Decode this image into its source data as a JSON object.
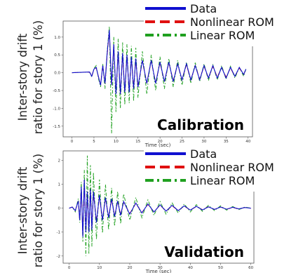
{
  "ylabel_line1": "Inter-story drift",
  "ylabel_line2": "ratio for story 1 (%)",
  "chart_data": [
    {
      "type": "line",
      "annotation": "Calibration",
      "xlabel": "Time (sec)",
      "xlim": [
        -2,
        41
      ],
      "ylim": [
        -1.8,
        1.45
      ],
      "xticks": [
        0,
        5,
        10,
        15,
        20,
        25,
        30,
        35,
        40
      ],
      "yticks": [
        -1.5,
        -1.0,
        -0.5,
        0.0,
        0.5,
        1.0
      ],
      "ytick_labels": [
        "-1.5",
        "-1.0",
        "-0.5",
        "0.0",
        "0.5",
        "1.0"
      ],
      "legend_placement": "top-right",
      "grid": false,
      "series": [
        {
          "name": "Data",
          "color": "#1010d0",
          "style": "solid",
          "x": [
            0,
            4,
            4.5,
            5,
            5.5,
            6,
            6.5,
            7,
            7.5,
            8,
            8.5,
            9,
            9.5,
            10,
            10.5,
            11,
            11.5,
            12,
            12.5,
            13,
            13.5,
            14,
            14.5,
            15,
            16,
            17,
            18,
            19,
            20,
            21,
            22,
            23,
            24,
            25,
            26,
            27,
            28,
            29,
            30,
            31,
            32,
            33,
            34,
            35,
            36,
            37,
            38,
            39,
            39.5
          ],
          "y": [
            0,
            0.02,
            -0.1,
            0.1,
            0.15,
            -0.1,
            -0.35,
            0.2,
            -0.3,
            0.55,
            1.2,
            -0.35,
            0.8,
            -0.6,
            0.6,
            -0.6,
            0.55,
            -0.55,
            0.5,
            -0.55,
            0.45,
            -0.45,
            0.4,
            -0.4,
            0.35,
            -0.3,
            0.35,
            -0.3,
            0.3,
            -0.25,
            0.3,
            -0.25,
            0.25,
            -0.2,
            0.25,
            -0.2,
            0.2,
            -0.2,
            0.2,
            -0.15,
            0.2,
            -0.15,
            0.15,
            -0.15,
            0.15,
            -0.1,
            0.15,
            -0.05,
            0.1
          ]
        },
        {
          "name": "Nonlinear ROM",
          "color": "#e01010",
          "style": "dashed",
          "x": [
            0,
            4,
            4.5,
            5,
            5.5,
            6,
            6.5,
            7,
            7.5,
            8,
            8.5,
            9,
            9.5,
            10,
            10.5,
            11,
            11.5,
            12,
            12.5,
            13,
            13.5,
            14,
            14.5,
            15,
            16,
            17,
            18,
            19,
            20,
            21,
            22,
            23,
            24,
            25,
            26,
            27,
            28,
            29,
            30,
            31,
            32,
            33,
            34,
            35,
            36,
            37,
            38,
            39,
            39.5
          ],
          "y": [
            0,
            0.02,
            -0.1,
            0.1,
            0.14,
            -0.1,
            -0.33,
            0.2,
            -0.3,
            0.5,
            1.15,
            -0.35,
            0.75,
            -0.58,
            0.58,
            -0.6,
            0.5,
            -0.55,
            0.48,
            -0.5,
            0.42,
            -0.45,
            0.38,
            -0.4,
            0.33,
            -0.3,
            0.33,
            -0.28,
            0.28,
            -0.25,
            0.28,
            -0.22,
            0.24,
            -0.2,
            0.22,
            -0.2,
            0.2,
            -0.18,
            0.18,
            -0.15,
            0.18,
            -0.12,
            0.14,
            -0.12,
            0.13,
            -0.1,
            0.13,
            -0.05,
            0.1
          ]
        },
        {
          "name": "Linear ROM",
          "color": "#20a020",
          "style": "dashdot",
          "x": [
            0,
            4,
            4.5,
            5,
            5.5,
            6,
            6.5,
            7,
            7.5,
            8,
            8.5,
            9,
            9.5,
            10,
            10.5,
            11,
            11.5,
            12,
            12.5,
            13,
            13.5,
            14,
            14.5,
            15,
            16,
            17,
            18,
            19,
            20,
            21,
            22,
            23,
            24,
            25,
            26,
            27,
            28,
            29,
            30,
            31,
            32,
            33,
            34,
            35,
            36,
            37,
            38,
            39,
            39.5
          ],
          "y": [
            0,
            0.02,
            -0.12,
            0.12,
            0.2,
            -0.15,
            -0.4,
            0.25,
            -0.45,
            0.6,
            1.3,
            -1.7,
            1.0,
            -1.1,
            0.95,
            -1.0,
            0.85,
            -0.9,
            0.8,
            -0.85,
            0.75,
            -0.8,
            0.7,
            -0.7,
            0.6,
            -0.6,
            0.5,
            -0.5,
            0.45,
            -0.45,
            0.4,
            -0.4,
            0.35,
            -0.35,
            0.3,
            -0.3,
            0.28,
            -0.25,
            0.25,
            -0.22,
            0.22,
            -0.2,
            0.2,
            -0.18,
            0.18,
            -0.15,
            0.15,
            -0.1,
            0.1
          ]
        }
      ]
    },
    {
      "type": "line",
      "annotation": "Validation",
      "xlabel": "Time (sec)",
      "xlim": [
        -2,
        61
      ],
      "ylim": [
        -2.3,
        2.4
      ],
      "xticks": [
        0,
        10,
        20,
        30,
        40,
        50,
        60
      ],
      "yticks": [
        -2,
        -1,
        0,
        1,
        2
      ],
      "ytick_labels": [
        "-2",
        "-1",
        "0",
        "1",
        "2"
      ],
      "legend_placement": "top-right",
      "grid": false,
      "series": [
        {
          "name": "Data",
          "color": "#1010d0",
          "style": "solid",
          "x": [
            0,
            1,
            2,
            3,
            3.5,
            4,
            4.5,
            5,
            5.5,
            6,
            6.5,
            7,
            7.5,
            8,
            9,
            10,
            11,
            12,
            13,
            14,
            15,
            16,
            17,
            18,
            20,
            22,
            24,
            26,
            28,
            30,
            32,
            34,
            36,
            38,
            40,
            42,
            44,
            46,
            48,
            50,
            52,
            54,
            56,
            58,
            60
          ],
          "y": [
            0,
            0.05,
            -0.1,
            0.3,
            -0.5,
            0.9,
            -1.2,
            1.2,
            -1.0,
            0.7,
            -1.0,
            0.8,
            -0.9,
            0.7,
            -0.6,
            0.55,
            -0.5,
            0.45,
            -0.4,
            0.4,
            -0.35,
            0.3,
            -0.3,
            0.28,
            -0.25,
            0.22,
            -0.2,
            0.18,
            -0.16,
            0.14,
            -0.12,
            0.12,
            -0.1,
            0.1,
            -0.08,
            0.08,
            -0.07,
            0.06,
            -0.05,
            0.05,
            -0.04,
            0.04,
            -0.03,
            0.03,
            0
          ]
        },
        {
          "name": "Nonlinear ROM",
          "color": "#e01010",
          "style": "dashed",
          "x": [
            0,
            1,
            2,
            3,
            3.5,
            4,
            4.5,
            5,
            5.5,
            6,
            6.5,
            7,
            7.5,
            8,
            9,
            10,
            11,
            12,
            13,
            14,
            15,
            16,
            17,
            18,
            20,
            22,
            24,
            26,
            28,
            30,
            32,
            34,
            36,
            38,
            40,
            42,
            44,
            46,
            48,
            50,
            52,
            54,
            56,
            58,
            60
          ],
          "y": [
            0,
            0.05,
            -0.1,
            0.3,
            -0.5,
            0.85,
            -1.15,
            1.15,
            -1.0,
            0.7,
            -0.95,
            0.75,
            -0.85,
            0.65,
            -0.55,
            0.5,
            -0.48,
            0.42,
            -0.38,
            0.36,
            -0.32,
            0.3,
            -0.28,
            0.25,
            -0.22,
            0.2,
            -0.18,
            0.16,
            -0.15,
            0.13,
            -0.12,
            0.1,
            -0.1,
            0.09,
            -0.08,
            0.07,
            -0.06,
            0.06,
            -0.05,
            0.05,
            -0.04,
            0.03,
            -0.03,
            0.03,
            0
          ]
        },
        {
          "name": "Linear ROM",
          "color": "#20a020",
          "style": "dashdot",
          "x": [
            0,
            1,
            2,
            3,
            3.5,
            4,
            4.5,
            5,
            5.5,
            6,
            6.5,
            7,
            7.5,
            8,
            9,
            10,
            11,
            12,
            13,
            14,
            15,
            16,
            17,
            18,
            20,
            22,
            24,
            26,
            28,
            30,
            32,
            34,
            36,
            38,
            40,
            42,
            44,
            46,
            48,
            50,
            52,
            54,
            56,
            58,
            60
          ],
          "y": [
            0,
            0.05,
            -0.15,
            0.4,
            -0.6,
            1.1,
            -1.4,
            1.6,
            -2.0,
            2.2,
            -1.9,
            1.8,
            -1.6,
            1.5,
            -1.3,
            1.2,
            -1.05,
            1.0,
            -0.9,
            0.85,
            -0.75,
            0.7,
            -0.65,
            0.6,
            -0.5,
            0.45,
            -0.4,
            0.35,
            -0.3,
            0.28,
            -0.25,
            0.22,
            -0.2,
            0.18,
            -0.16,
            0.15,
            -0.13,
            0.12,
            -0.1,
            0.1,
            -0.08,
            0.07,
            -0.06,
            0.05,
            0
          ]
        }
      ]
    }
  ]
}
